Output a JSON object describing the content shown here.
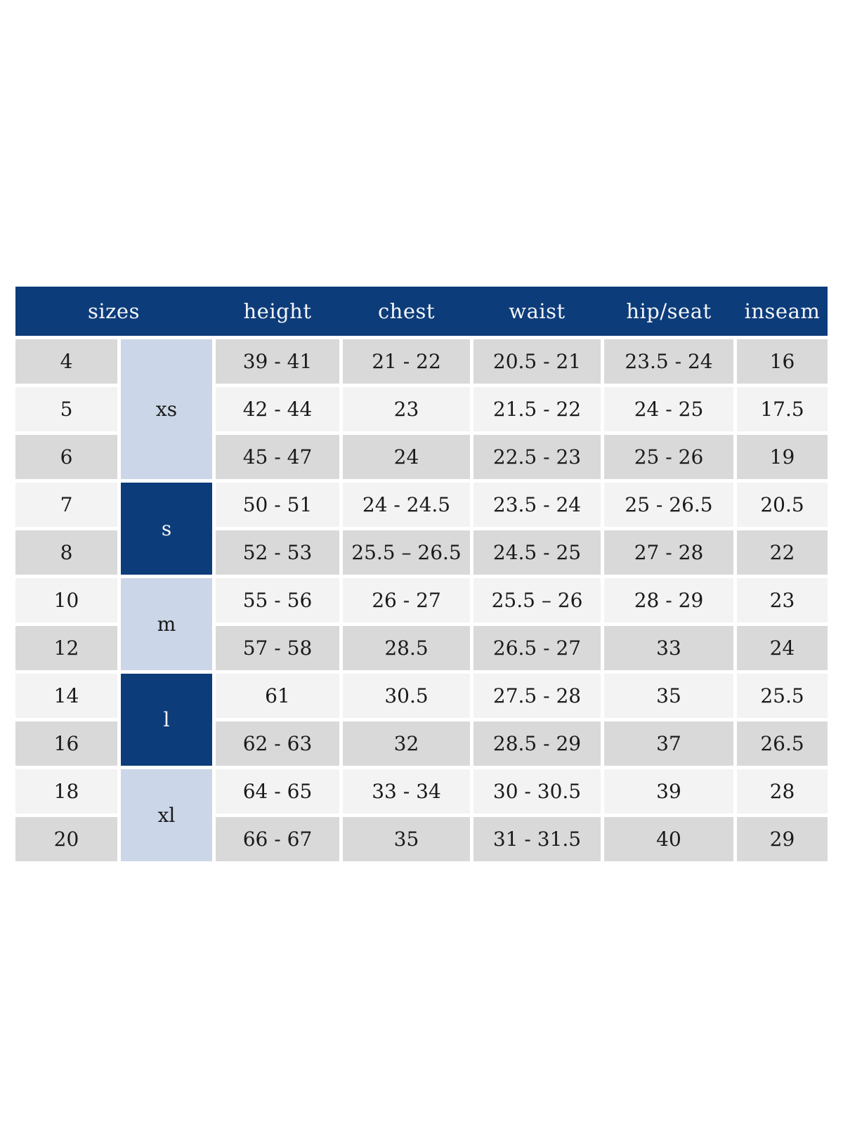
{
  "colors": {
    "header_bg": "#0d3c7a",
    "header_text": "#f4f6fa",
    "group_light_bg": "#cbd7e8",
    "group_dark_bg": "#0d3c7a",
    "group_light_text": "#1a1a1a",
    "group_dark_text": "#f4f6fa",
    "row_gray_bg": "#d9d9d9",
    "row_light_bg": "#f3f3f3",
    "cell_text": "#1a1a1a",
    "page_bg": "#ffffff"
  },
  "table": {
    "header": {
      "sizes_label": "sizes",
      "columns": [
        "height",
        "chest",
        "waist",
        "hip/seat",
        "inseam"
      ]
    },
    "size_groups": [
      {
        "label": "xs",
        "span": 3,
        "variant": "light"
      },
      {
        "label": "s",
        "span": 2,
        "variant": "dark"
      },
      {
        "label": "m",
        "span": 2,
        "variant": "light"
      },
      {
        "label": "l",
        "span": 2,
        "variant": "dark"
      },
      {
        "label": "xl",
        "span": 2,
        "variant": "light"
      }
    ],
    "rows": [
      {
        "size": "4",
        "shade": "gray",
        "values": [
          "39 - 41",
          "21 - 22",
          "20.5 - 21",
          "23.5 - 24",
          "16"
        ]
      },
      {
        "size": "5",
        "shade": "light",
        "values": [
          "42 - 44",
          "23",
          "21.5 - 22",
          "24 - 25",
          "17.5"
        ]
      },
      {
        "size": "6",
        "shade": "gray",
        "values": [
          "45 - 47",
          "24",
          "22.5 - 23",
          "25 - 26",
          "19"
        ]
      },
      {
        "size": "7",
        "shade": "light",
        "values": [
          "50 - 51",
          "24 - 24.5",
          "23.5 - 24",
          "25 - 26.5",
          "20.5"
        ]
      },
      {
        "size": "8",
        "shade": "gray",
        "values": [
          "52 - 53",
          "25.5 – 26.5",
          "24.5 - 25",
          "27 - 28",
          "22"
        ]
      },
      {
        "size": "10",
        "shade": "light",
        "values": [
          "55 - 56",
          "26 - 27",
          "25.5 – 26",
          "28 - 29",
          "23"
        ]
      },
      {
        "size": "12",
        "shade": "gray",
        "values": [
          "57 - 58",
          "28.5",
          "26.5 - 27",
          "33",
          "24"
        ]
      },
      {
        "size": "14",
        "shade": "light",
        "values": [
          "61",
          "30.5",
          "27.5 - 28",
          "35",
          "25.5"
        ]
      },
      {
        "size": "16",
        "shade": "gray",
        "values": [
          "62 - 63",
          "32",
          "28.5 - 29",
          "37",
          "26.5"
        ]
      },
      {
        "size": "18",
        "shade": "light",
        "values": [
          "64 - 65",
          "33 - 34",
          "30 - 30.5",
          "39",
          "28"
        ]
      },
      {
        "size": "20",
        "shade": "gray",
        "values": [
          "66 - 67",
          "35",
          "31 - 31.5",
          "40",
          "29"
        ]
      }
    ]
  }
}
